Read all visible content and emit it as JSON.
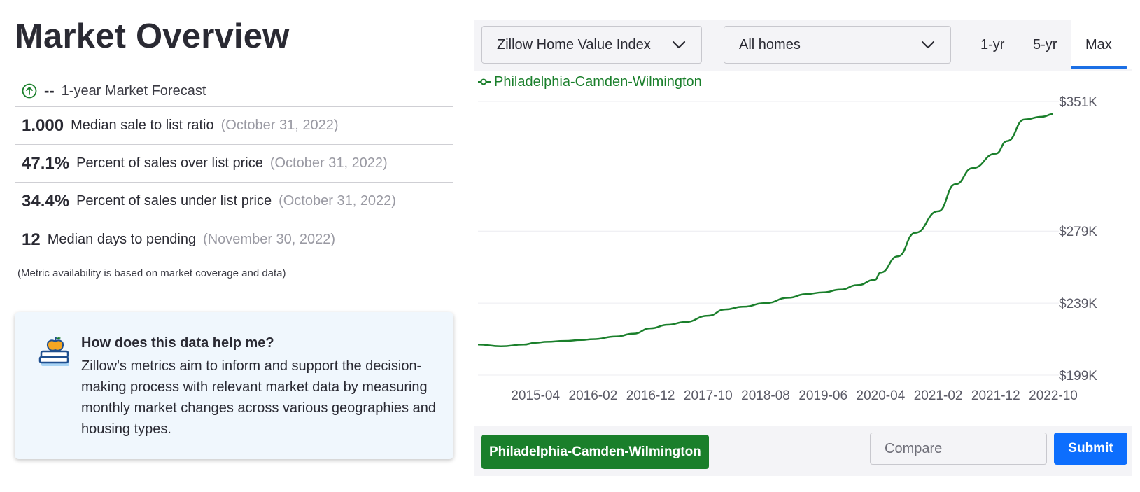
{
  "left": {
    "title": "Market Overview",
    "forecast": {
      "value": "--",
      "label": "1-year Market Forecast"
    },
    "metrics": [
      {
        "value": "1.000",
        "label": "Median sale to list ratio",
        "date": "(October 31, 2022)"
      },
      {
        "value": "47.1%",
        "label": "Percent of sales over list price",
        "date": "(October 31, 2022)"
      },
      {
        "value": "34.4%",
        "label": "Percent of sales under list price",
        "date": "(October 31, 2022)"
      },
      {
        "value": "12",
        "label": "Median days to pending",
        "date": "(November 30, 2022)"
      }
    ],
    "note": "(Metric availability is based on market coverage and data)",
    "help": {
      "title": "How does this data help me?",
      "body": "Zillow's metrics aim to inform and support the decision-making process with relevant market data by measuring monthly market changes across various geographies and housing types."
    }
  },
  "controls": {
    "metric_select": "Zillow Home Value Index",
    "home_type_select": "All homes",
    "tabs": [
      "1-yr",
      "5-yr",
      "Max"
    ],
    "active_tab": "Max"
  },
  "bottom": {
    "region_button": "Philadelphia-Camden-Wilmington",
    "compare_placeholder": "Compare",
    "submit_label": "Submit"
  },
  "colors": {
    "series": "#1a7f2b",
    "accent": "#1b6fe5",
    "forecast_icon": "#1a7f2b"
  },
  "chart_data": {
    "type": "line",
    "series": [
      {
        "name": "Philadelphia-Camden-Wilmington",
        "x": [
          "2014-06",
          "2014-10",
          "2015-02",
          "2015-04",
          "2015-06",
          "2015-09",
          "2015-12",
          "2016-02",
          "2016-06",
          "2016-09",
          "2016-12",
          "2017-03",
          "2017-06",
          "2017-10",
          "2018-01",
          "2018-04",
          "2018-08",
          "2018-12",
          "2019-03",
          "2019-06",
          "2019-09",
          "2019-12",
          "2020-03",
          "2020-04",
          "2020-07",
          "2020-10",
          "2021-02",
          "2021-05",
          "2021-08",
          "2021-12",
          "2022-02",
          "2022-05",
          "2022-08",
          "2022-10"
        ],
        "values": [
          216,
          215,
          216,
          217,
          217.5,
          218,
          218.5,
          219,
          220.5,
          222,
          225,
          227,
          228.5,
          232,
          235.5,
          237,
          239,
          242,
          244,
          245,
          246.5,
          249,
          252,
          256,
          265,
          278,
          290,
          305,
          314,
          322,
          329,
          341,
          342.5,
          344
        ]
      }
    ],
    "ytick_values": [
      199,
      239,
      279,
      351
    ],
    "ytick_labels": [
      "$199K",
      "$239K",
      "$279K",
      "$351K"
    ],
    "xtick_labels": [
      "2015-04",
      "2016-02",
      "2016-12",
      "2017-10",
      "2018-08",
      "2019-06",
      "2020-04",
      "2021-02",
      "2021-12",
      "2022-10"
    ],
    "x_range": [
      "2014-06",
      "2022-10"
    ],
    "ylim": [
      199,
      351
    ],
    "grid": true,
    "legend_position": "top-left"
  }
}
